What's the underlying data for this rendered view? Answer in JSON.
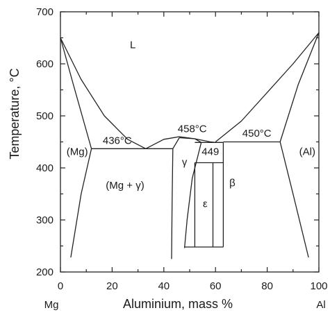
{
  "chart_data": {
    "type": "line",
    "title": "",
    "xlabel": "Aluminium, mass %",
    "ylabel": "Temperature, °C",
    "xlim": [
      0,
      100
    ],
    "ylim": [
      200,
      700
    ],
    "x_ticks": [
      "0",
      "20",
      "40",
      "60",
      "80",
      "100"
    ],
    "y_ticks": [
      "200",
      "300",
      "400",
      "500",
      "600",
      "700"
    ],
    "x_end_labels": {
      "left": "Mg",
      "right": "Al"
    },
    "grid": false,
    "lines": [
      {
        "id": "liquidus-mg",
        "points": [
          [
            0,
            650
          ],
          [
            8,
            570
          ],
          [
            17,
            500
          ],
          [
            26,
            455
          ],
          [
            33,
            437
          ]
        ]
      },
      {
        "id": "solidus-mg",
        "points": [
          [
            0,
            650
          ],
          [
            5,
            560
          ],
          [
            12,
            437
          ]
        ]
      },
      {
        "id": "solvus-mg",
        "points": [
          [
            12,
            437
          ],
          [
            8,
            350
          ],
          [
            4,
            228
          ]
        ]
      },
      {
        "id": "eutectic-436",
        "points": [
          [
            12,
            437
          ],
          [
            43.5,
            437
          ]
        ]
      },
      {
        "id": "liquidus-gamma",
        "points": [
          [
            33,
            437
          ],
          [
            40,
            455
          ],
          [
            46,
            460
          ],
          [
            52,
            456
          ],
          [
            58,
            450
          ],
          [
            60,
            449
          ]
        ]
      },
      {
        "id": "gamma-left-solidus",
        "points": [
          [
            43.5,
            437
          ],
          [
            46,
            458
          ]
        ]
      },
      {
        "id": "gamma-left-boundary",
        "points": [
          [
            43.5,
            437
          ],
          [
            43.2,
            330
          ],
          [
            43,
            225
          ]
        ]
      },
      {
        "id": "gamma-right-solidus",
        "points": [
          [
            46,
            458
          ],
          [
            52,
            456
          ],
          [
            54.5,
            449
          ]
        ]
      },
      {
        "id": "gamma-right-boundary",
        "points": [
          [
            54.5,
            449
          ],
          [
            51,
            380
          ],
          [
            49,
            300
          ],
          [
            48,
            246
          ]
        ]
      },
      {
        "id": "peritectic-449",
        "points": [
          [
            52,
            449
          ],
          [
            63,
            449
          ]
        ]
      },
      {
        "id": "eps-top",
        "points": [
          [
            52,
            410
          ],
          [
            63,
            410
          ]
        ]
      },
      {
        "id": "eps-left",
        "points": [
          [
            52,
            410
          ],
          [
            52,
            248
          ]
        ]
      },
      {
        "id": "eps-mid",
        "points": [
          [
            59,
            410
          ],
          [
            59,
            248
          ]
        ]
      },
      {
        "id": "eps-bottom",
        "points": [
          [
            48,
            248
          ],
          [
            63,
            248
          ]
        ]
      },
      {
        "id": "beta-left",
        "points": [
          [
            63,
            449
          ],
          [
            63,
            248
          ]
        ]
      },
      {
        "id": "liquidus-al",
        "points": [
          [
            60,
            450
          ],
          [
            70,
            490
          ],
          [
            80,
            545
          ],
          [
            90,
            600
          ],
          [
            100,
            660
          ]
        ]
      },
      {
        "id": "solidus-al",
        "points": [
          [
            100,
            660
          ],
          [
            92,
            560
          ],
          [
            85,
            450
          ]
        ]
      },
      {
        "id": "eutectic-450",
        "points": [
          [
            63,
            450
          ],
          [
            85,
            450
          ]
        ]
      },
      {
        "id": "solvus-al",
        "points": [
          [
            85,
            450
          ],
          [
            90,
            350
          ],
          [
            96,
            228
          ]
        ]
      }
    ],
    "annotations": [
      {
        "id": "L",
        "text": "L",
        "x": 28,
        "y": 630
      },
      {
        "id": "mg",
        "text": "(Mg)",
        "x": 6.5,
        "y": 425
      },
      {
        "id": "t436",
        "text": "436°C",
        "x": 22,
        "y": 446
      },
      {
        "id": "t458",
        "text": "458°C",
        "x": 51,
        "y": 469
      },
      {
        "id": "t449",
        "text": "449",
        "x": 58,
        "y": 425
      },
      {
        "id": "t450",
        "text": "450°C",
        "x": 76,
        "y": 460
      },
      {
        "id": "al",
        "text": "(Al)",
        "x": 95.5,
        "y": 425
      },
      {
        "id": "gamma",
        "text": "γ",
        "x": 48,
        "y": 405
      },
      {
        "id": "mg-gamma",
        "text": "(Mg + γ)",
        "x": 25,
        "y": 360
      },
      {
        "id": "beta",
        "text": "β",
        "x": 66.5,
        "y": 365
      },
      {
        "id": "eps",
        "text": "ε",
        "x": 56,
        "y": 325
      }
    ]
  }
}
